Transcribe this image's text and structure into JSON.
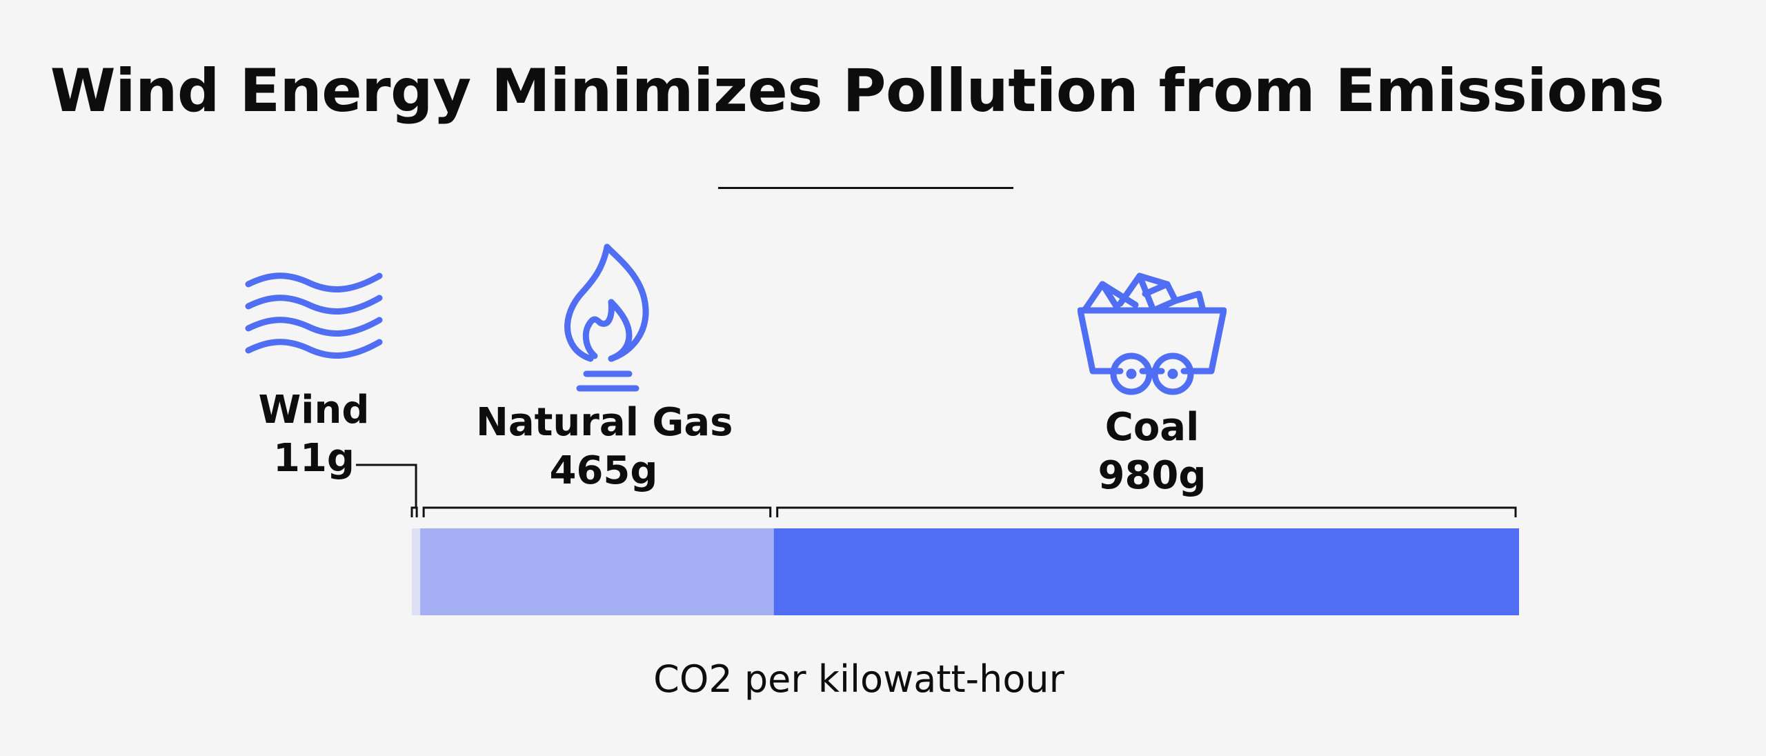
{
  "chart_data": {
    "type": "bar",
    "orientation": "horizontal-stacked",
    "title": "Wind Energy Minimizes Pollution from Emissions",
    "xlabel": "CO2 per kilowatt-hour",
    "unit": "g",
    "categories": [
      "Wind",
      "Natural Gas",
      "Coal"
    ],
    "values": [
      11,
      465,
      980
    ],
    "value_labels": [
      "11g",
      "465g",
      "980g"
    ],
    "xlim": [
      0,
      980
    ],
    "colors": [
      "#dde0f5",
      "#a4b0f3",
      "#4f6ef3"
    ],
    "icons": [
      "wind-waves-icon",
      "gas-flame-icon",
      "coal-cart-icon"
    ],
    "icon_color": "#4f6ef3"
  }
}
